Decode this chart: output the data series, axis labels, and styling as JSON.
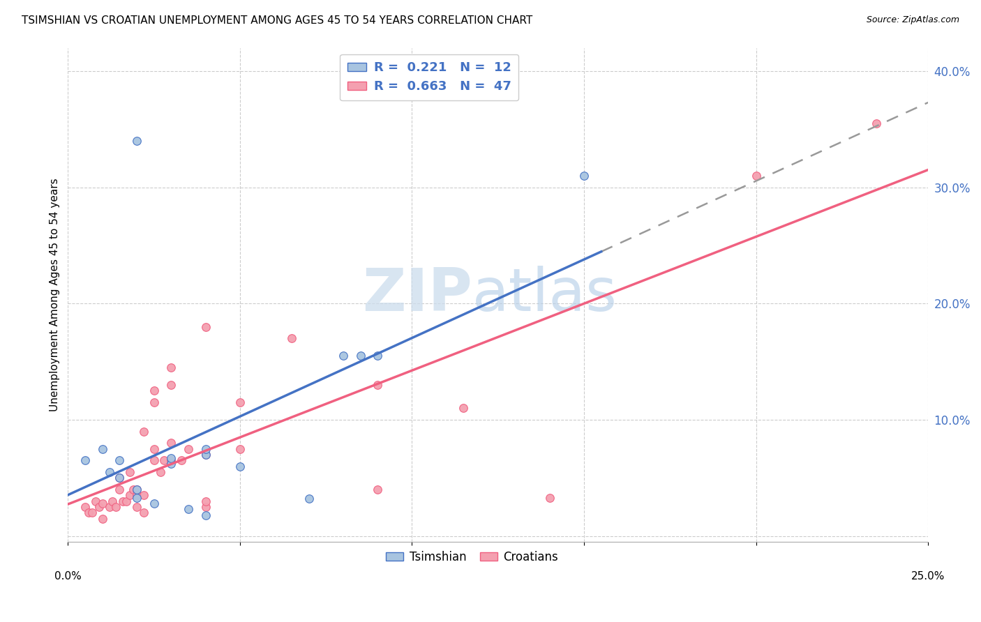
{
  "title": "TSIMSHIAN VS CROATIAN UNEMPLOYMENT AMONG AGES 45 TO 54 YEARS CORRELATION CHART",
  "source": "Source: ZipAtlas.com",
  "ylabel": "Unemployment Among Ages 45 to 54 years",
  "xlim": [
    0.0,
    0.25
  ],
  "ylim": [
    -0.005,
    0.42
  ],
  "yticks": [
    0.0,
    0.1,
    0.2,
    0.3,
    0.4
  ],
  "ytick_labels": [
    "",
    "10.0%",
    "20.0%",
    "30.0%",
    "40.0%"
  ],
  "xticks": [
    0.0,
    0.05,
    0.1,
    0.15,
    0.2,
    0.25
  ],
  "tsimshian_color": "#a8c4e0",
  "croatian_color": "#f4a0b0",
  "tsimshian_line_color": "#4472c4",
  "croatian_line_color": "#f06080",
  "tsimshian_points": [
    [
      0.005,
      0.065
    ],
    [
      0.01,
      0.075
    ],
    [
      0.012,
      0.055
    ],
    [
      0.015,
      0.05
    ],
    [
      0.015,
      0.065
    ],
    [
      0.02,
      0.04
    ],
    [
      0.02,
      0.033
    ],
    [
      0.025,
      0.028
    ],
    [
      0.03,
      0.062
    ],
    [
      0.03,
      0.067
    ],
    [
      0.035,
      0.023
    ],
    [
      0.04,
      0.018
    ],
    [
      0.04,
      0.07
    ],
    [
      0.04,
      0.075
    ],
    [
      0.05,
      0.06
    ],
    [
      0.07,
      0.032
    ],
    [
      0.08,
      0.155
    ],
    [
      0.085,
      0.155
    ],
    [
      0.09,
      0.155
    ],
    [
      0.15,
      0.31
    ],
    [
      0.02,
      0.34
    ]
  ],
  "croatian_points": [
    [
      0.005,
      0.025
    ],
    [
      0.006,
      0.02
    ],
    [
      0.007,
      0.02
    ],
    [
      0.008,
      0.03
    ],
    [
      0.009,
      0.025
    ],
    [
      0.01,
      0.015
    ],
    [
      0.01,
      0.028
    ],
    [
      0.012,
      0.025
    ],
    [
      0.013,
      0.03
    ],
    [
      0.014,
      0.025
    ],
    [
      0.015,
      0.04
    ],
    [
      0.015,
      0.05
    ],
    [
      0.016,
      0.03
    ],
    [
      0.017,
      0.03
    ],
    [
      0.018,
      0.035
    ],
    [
      0.018,
      0.055
    ],
    [
      0.019,
      0.04
    ],
    [
      0.02,
      0.025
    ],
    [
      0.02,
      0.035
    ],
    [
      0.02,
      0.04
    ],
    [
      0.022,
      0.02
    ],
    [
      0.022,
      0.035
    ],
    [
      0.022,
      0.09
    ],
    [
      0.025,
      0.065
    ],
    [
      0.025,
      0.075
    ],
    [
      0.025,
      0.115
    ],
    [
      0.025,
      0.125
    ],
    [
      0.027,
      0.055
    ],
    [
      0.028,
      0.065
    ],
    [
      0.03,
      0.065
    ],
    [
      0.03,
      0.08
    ],
    [
      0.03,
      0.13
    ],
    [
      0.03,
      0.145
    ],
    [
      0.033,
      0.065
    ],
    [
      0.035,
      0.075
    ],
    [
      0.04,
      0.025
    ],
    [
      0.04,
      0.03
    ],
    [
      0.04,
      0.07
    ],
    [
      0.04,
      0.18
    ],
    [
      0.05,
      0.075
    ],
    [
      0.05,
      0.115
    ],
    [
      0.065,
      0.17
    ],
    [
      0.09,
      0.04
    ],
    [
      0.09,
      0.13
    ],
    [
      0.115,
      0.11
    ],
    [
      0.14,
      0.033
    ],
    [
      0.2,
      0.31
    ],
    [
      0.235,
      0.355
    ]
  ]
}
